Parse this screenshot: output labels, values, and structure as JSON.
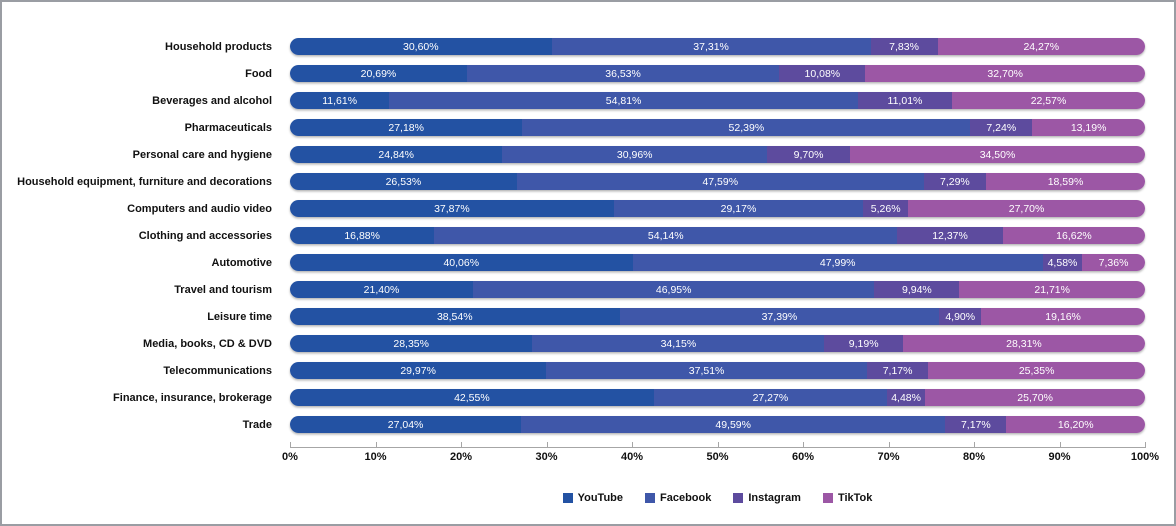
{
  "chart_data": {
    "type": "bar",
    "orientation": "horizontal",
    "stacked": true,
    "title": "",
    "xlabel": "",
    "ylabel": "",
    "xlim": [
      0,
      100
    ],
    "x_ticks": [
      "0%",
      "10%",
      "20%",
      "30%",
      "40%",
      "50%",
      "60%",
      "70%",
      "80%",
      "90%",
      "100%"
    ],
    "legend_position": "bottom",
    "value_label_format": "comma-decimal-percent",
    "categories": [
      "Household products",
      "Food",
      "Beverages and alcohol",
      "Pharmaceuticals",
      "Personal care and hygiene",
      "Household equipment, furniture and decorations",
      "Computers and audio video",
      "Clothing and accessories",
      "Automotive",
      "Travel and tourism",
      "Leisure time",
      "Media, books, CD & DVD",
      "Telecommunications",
      "Finance, insurance, brokerage",
      "Trade"
    ],
    "series": [
      {
        "name": "YouTube",
        "color": "#2352a3",
        "values": [
          30.6,
          20.69,
          11.61,
          27.18,
          24.84,
          26.53,
          37.87,
          16.88,
          40.06,
          21.4,
          38.54,
          28.35,
          29.97,
          42.55,
          27.04
        ]
      },
      {
        "name": "Facebook",
        "color": "#3f57a9",
        "values": [
          37.31,
          36.53,
          54.81,
          52.39,
          30.96,
          47.59,
          29.17,
          54.14,
          47.99,
          46.95,
          37.39,
          34.15,
          37.51,
          27.27,
          49.59
        ]
      },
      {
        "name": "Instagram",
        "color": "#5d4b9e",
        "values": [
          7.83,
          10.08,
          11.01,
          7.24,
          9.7,
          7.29,
          5.26,
          12.37,
          4.58,
          9.94,
          4.9,
          9.19,
          7.17,
          4.48,
          7.17
        ]
      },
      {
        "name": "TikTok",
        "color": "#9c57a5",
        "values": [
          24.27,
          32.7,
          22.57,
          13.19,
          34.5,
          18.59,
          27.7,
          16.62,
          7.36,
          21.71,
          19.16,
          28.31,
          25.35,
          25.7,
          16.2
        ]
      }
    ],
    "axis_color": "#a6a6a6",
    "frame_border_color": "#9a9da3"
  }
}
